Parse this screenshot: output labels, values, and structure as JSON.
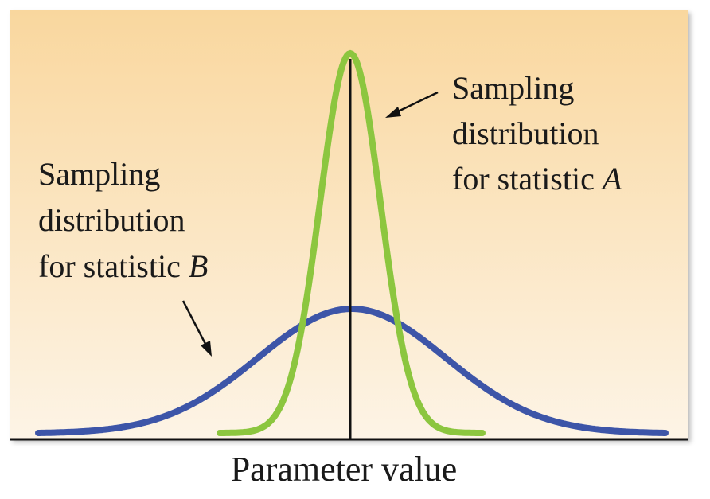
{
  "x_axis_label": "Parameter value",
  "statistic_a": {
    "lines": [
      "Sampling",
      "distribution",
      "for statistic "
    ],
    "letter": "A",
    "color": "#8cc63f"
  },
  "statistic_b": {
    "lines": [
      "Sampling",
      "distribution",
      "for statistic "
    ],
    "letter": "B",
    "color": "#3d55a8"
  },
  "background": {
    "top_color": "#f9d79e",
    "bottom_color": "#fdf4e6"
  }
}
